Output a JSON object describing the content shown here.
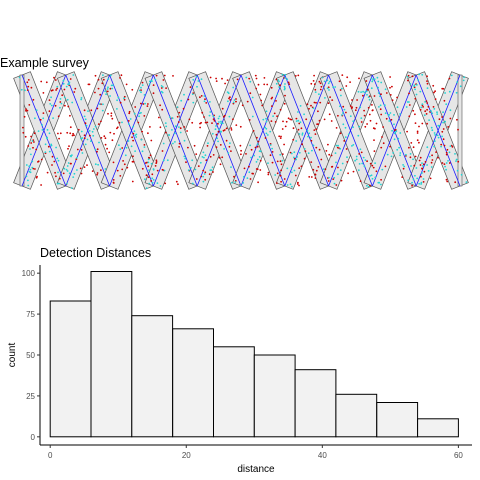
{
  "chart_data": [
    {
      "type": "map",
      "title": "Example survey",
      "transect_count": 10,
      "colors": {
        "transect_fill": "#e6e6e6",
        "transect_border": "#555555",
        "transect_line": "#1a1aff",
        "animals": "#cc0000",
        "detections": "#22d3d3"
      }
    },
    {
      "type": "bar",
      "title": "Detection Distances",
      "xlabel": "distance",
      "ylabel": "count",
      "bins": [
        {
          "x0": 0,
          "x1": 6,
          "count": 83
        },
        {
          "x0": 6,
          "x1": 12,
          "count": 101
        },
        {
          "x0": 12,
          "x1": 18,
          "count": 74
        },
        {
          "x0": 18,
          "x1": 24,
          "count": 66
        },
        {
          "x0": 24,
          "x1": 30,
          "count": 55
        },
        {
          "x0": 30,
          "x1": 36,
          "count": 50
        },
        {
          "x0": 36,
          "x1": 42,
          "count": 41
        },
        {
          "x0": 42,
          "x1": 48,
          "count": 26
        },
        {
          "x0": 48,
          "x1": 54,
          "count": 21
        },
        {
          "x0": 54,
          "x1": 60,
          "count": 11
        }
      ],
      "xticks": [
        0,
        20,
        40,
        60
      ],
      "yticks": [
        0,
        25,
        50,
        75,
        100
      ],
      "xlim": [
        -1.5,
        62
      ],
      "ylim": [
        -5,
        105
      ],
      "colors": {
        "bar_fill": "#f2f2f2",
        "bar_border": "#000000"
      }
    }
  ]
}
